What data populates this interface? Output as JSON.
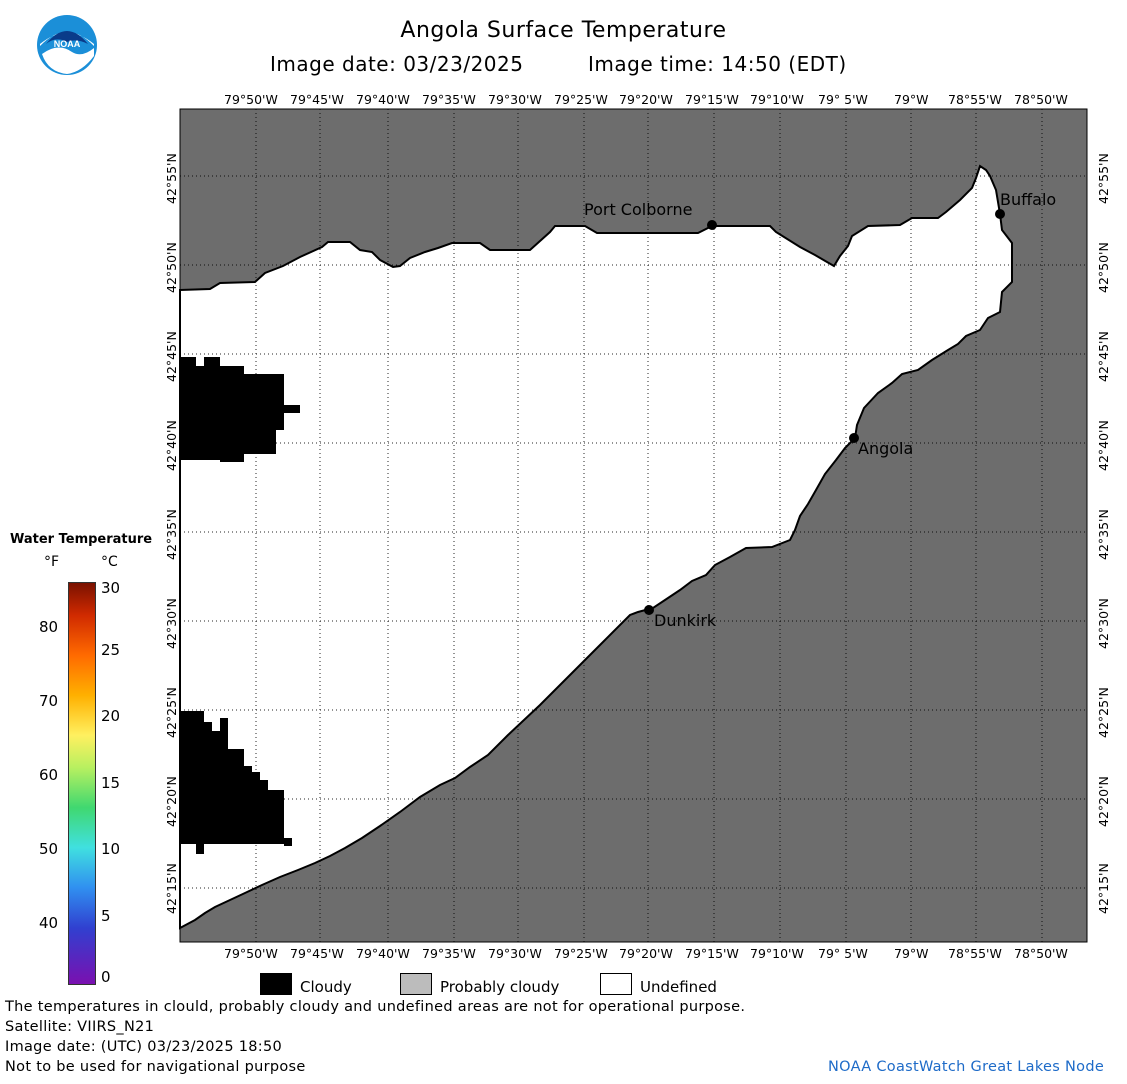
{
  "header": {
    "title": "Angola Surface Temperature",
    "image_date": "Image date: 03/23/2025",
    "image_time": "Image time: 14:50 (EDT)"
  },
  "logo": {
    "text": "NOAA"
  },
  "map": {
    "lon_labels": [
      "79°50'W",
      "79°45'W",
      "79°40'W",
      "79°35'W",
      "79°30'W",
      "79°25'W",
      "79°20'W",
      "79°15'W",
      "79°10'W",
      "79° 5'W",
      "79°W",
      "78°55'W",
      "78°50'W"
    ],
    "lat_labels": [
      "42°55'N",
      "42°50'N",
      "42°45'N",
      "42°40'N",
      "42°35'N",
      "42°30'N",
      "42°25'N",
      "42°20'N",
      "42°15'N"
    ],
    "cities": {
      "port_colborne": "Port Colborne",
      "buffalo": "Buffalo",
      "angola": "Angola",
      "dunkirk": "Dunkirk"
    },
    "colors": {
      "land": "#6d6d6d",
      "water_undefined": "#ffffff",
      "cloud": "#000000"
    }
  },
  "legend": {
    "title": "Water Temperature",
    "unit_f": "°F",
    "unit_c": "°C",
    "f_labels": [
      "80",
      "70",
      "60",
      "50",
      "40"
    ],
    "c_labels": [
      "30",
      "25",
      "20",
      "15",
      "10",
      "5",
      "0"
    ]
  },
  "key": {
    "cloudy": "Cloudy",
    "probably_cloudy": "Probably cloudy",
    "undefined": "Undefined"
  },
  "footer": {
    "disclaimer": "The temperatures in clould, probably cloudy and undefined areas are not for operational purpose.",
    "satellite": "Satellite: VIIRS_N21",
    "utc_date": "Image date: (UTC) 03/23/2025  18:50",
    "navigation": "Not to be used for navigational purpose",
    "credit": "NOAA CoastWatch Great Lakes Node"
  }
}
